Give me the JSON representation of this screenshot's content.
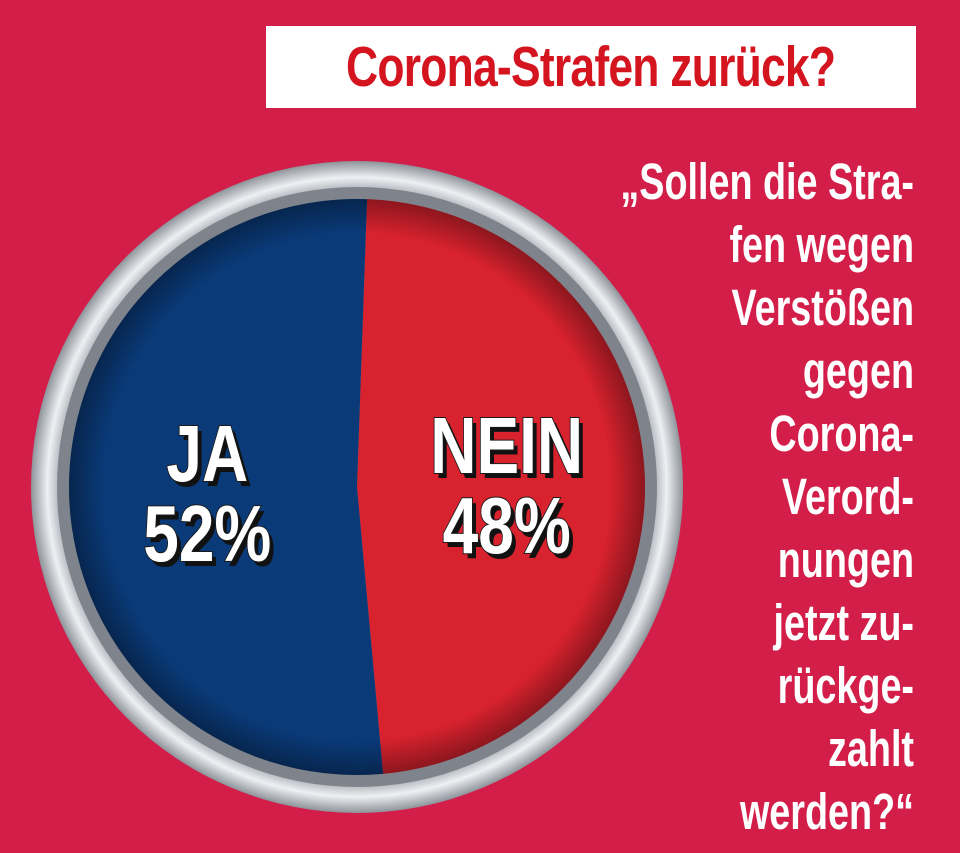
{
  "title": "Corona-Strafen zurück?",
  "question_lines": [
    "„Sollen die Stra-",
    "fen wegen",
    "Verstößen",
    "gegen",
    "Corona-",
    "Verord-",
    "nungen",
    "jetzt zu-",
    "rückge-",
    "zahlt",
    "werden?“"
  ],
  "colors": {
    "background": "#d21e48",
    "ja": "#0a3a78",
    "nein": "#d8222e",
    "rim": "#c8ccd2",
    "title_text": "#d4141e"
  },
  "chart_data": {
    "type": "pie",
    "title": "Corona-Strafen zurück?",
    "slices": [
      {
        "label": "NEIN",
        "value": 48,
        "display": "48%",
        "color": "#d8222e"
      },
      {
        "label": "JA",
        "value": 52,
        "display": "52%",
        "color": "#0a3a78"
      }
    ]
  }
}
